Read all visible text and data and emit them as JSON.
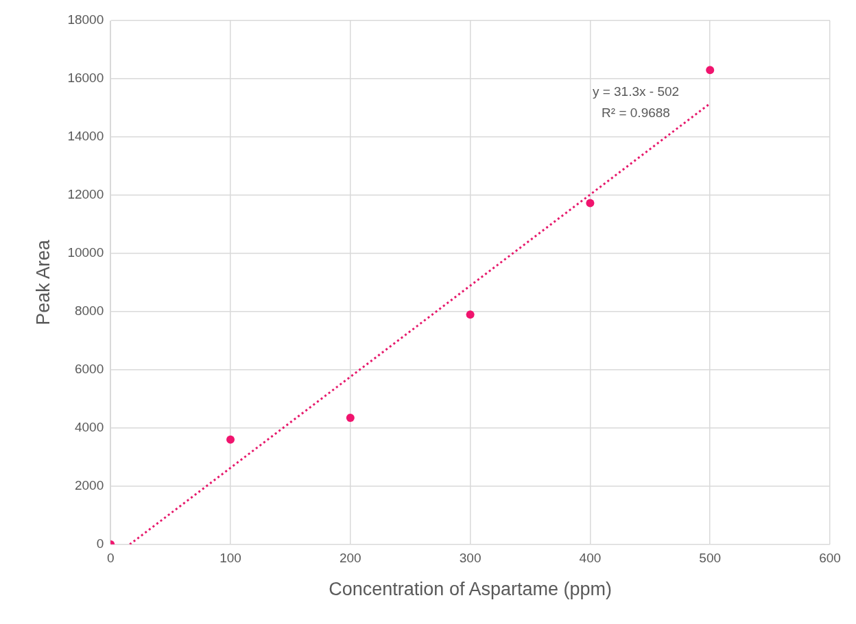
{
  "chart_data": {
    "type": "scatter",
    "xlabel": "Concentration of Aspartame (ppm)",
    "ylabel": "Peak Area",
    "series": [
      {
        "color": "#f0146e",
        "x": [
          0,
          100,
          200,
          300,
          400,
          500
        ],
        "values": [
          0,
          3600,
          4350,
          7900,
          11730,
          16300
        ],
        "marker": "circle"
      },
      {
        "type": "line",
        "color": "#e6196b",
        "x": [
          16,
          500
        ],
        "values": [
          0,
          15150
        ],
        "line_style": "dotted",
        "marker": "none"
      }
    ],
    "annotations": [
      "y = 31.3x - 502",
      "R² = 0.9688"
    ],
    "xlim": [
      0,
      600
    ],
    "xticks": [
      0,
      100,
      200,
      300,
      400,
      500,
      600
    ],
    "ylim": [
      0,
      18000
    ],
    "yticks": [
      0,
      2000,
      4000,
      6000,
      8000,
      10000,
      12000,
      14000,
      16000,
      18000
    ],
    "grid": true,
    "legend": false
  }
}
